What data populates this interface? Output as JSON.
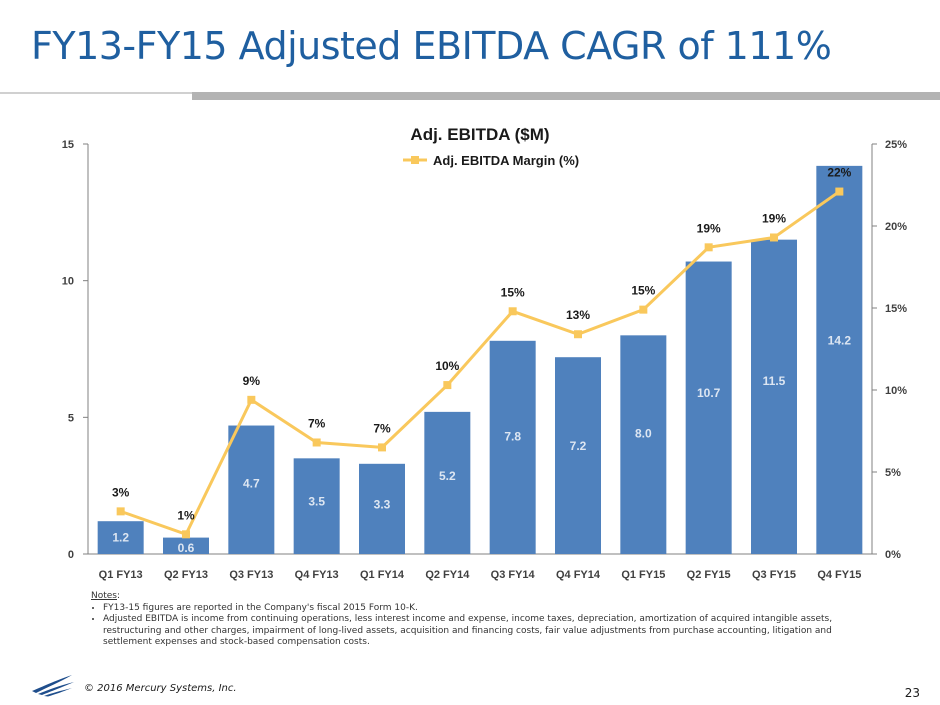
{
  "slide": {
    "title": "FY13-FY15 Adjusted EBITDA CAGR of 111%",
    "copyright": "© 2016 Mercury Systems, Inc.",
    "page_number": "23"
  },
  "notes": {
    "header": "Notes",
    "items": [
      "FY13-15 figures are reported in the Company's fiscal 2015 Form 10-K.",
      "Adjusted EBITDA is income from continuing operations, less interest income and expense, income taxes, depreciation, amortization of acquired intangible assets, restructuring and other charges, impairment of long-lived assets, acquisition and financing costs, fair value adjustments from purchase accounting, litigation and settlement expenses and stock-based compensation costs."
    ]
  },
  "chart_data": {
    "type": "bar",
    "title": "Adj. EBITDA ($M)",
    "categories": [
      "Q1 FY13",
      "Q2 FY13",
      "Q3 FY13",
      "Q4 FY13",
      "Q1 FY14",
      "Q2 FY14",
      "Q3 FY14",
      "Q4 FY14",
      "Q1 FY15",
      "Q2 FY15",
      "Q3 FY15",
      "Q4 FY15"
    ],
    "series": [
      {
        "name": "Adj. EBITDA ($M)",
        "type": "bar",
        "axis": "left",
        "values": [
          1.2,
          0.6,
          4.7,
          3.5,
          3.3,
          5.2,
          7.8,
          7.2,
          8.0,
          10.7,
          11.5,
          14.2
        ],
        "labels": [
          "1.2",
          "0.6",
          "4.7",
          "3.5",
          "3.3",
          "5.2",
          "7.8",
          "7.2",
          "8.0",
          "10.7",
          "11.5",
          "14.2"
        ]
      },
      {
        "name": "Adj. EBITDA Margin (%)",
        "type": "line",
        "axis": "right",
        "values": [
          2.6,
          1.2,
          9.4,
          6.8,
          6.5,
          10.3,
          14.8,
          13.4,
          14.9,
          18.7,
          19.3,
          22.1
        ],
        "labels": [
          "3%",
          "1%",
          "9%",
          "7%",
          "7%",
          "10%",
          "15%",
          "13%",
          "15%",
          "19%",
          "19%",
          "22%"
        ]
      }
    ],
    "y_left": {
      "range": [
        0,
        15
      ],
      "ticks": [
        "0",
        "5",
        "10",
        "15"
      ],
      "tick_values": [
        0,
        5,
        10,
        15
      ]
    },
    "y_right": {
      "range": [
        0,
        25
      ],
      "ticks": [
        "0%",
        "5%",
        "10%",
        "15%",
        "20%",
        "25%"
      ],
      "tick_values": [
        0,
        5,
        10,
        15,
        20,
        25
      ]
    },
    "legend": "top-center",
    "grid": false,
    "colors": {
      "bar": "#4f81bd",
      "line": "#f9c85c",
      "axis": "#808080",
      "bar_label": "#dde6f2"
    }
  }
}
